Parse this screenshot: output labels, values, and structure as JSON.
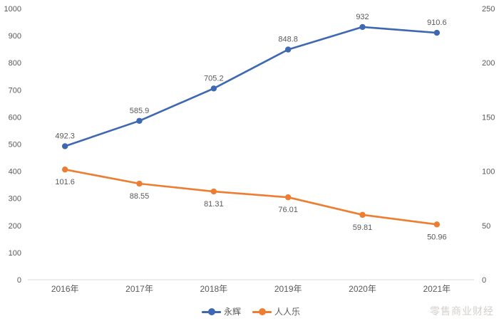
{
  "chart_data": {
    "type": "line",
    "title": "",
    "categories": [
      "2016年",
      "2017年",
      "2018年",
      "2019年",
      "2020年",
      "2021年"
    ],
    "series": [
      {
        "name": "永辉",
        "axis": "left",
        "color": "#3e68b1",
        "values": [
          492.3,
          585.9,
          705.2,
          848.8,
          932,
          910.6
        ],
        "labels": [
          "492.3",
          "585.9",
          "705.2",
          "848.8",
          "932",
          "910.6"
        ],
        "label_side": "above",
        "marker": "circle"
      },
      {
        "name": "人人乐",
        "axis": "right",
        "color": "#ed7d31",
        "values": [
          101.6,
          88.55,
          81.31,
          76.01,
          59.81,
          50.96
        ],
        "labels": [
          "101.6",
          "88.55",
          "81.31",
          "76.01",
          "59.81",
          "50.96"
        ],
        "label_side": "below",
        "marker": "circle"
      }
    ],
    "axes": {
      "left": {
        "min": 0,
        "max": 1000,
        "step": 100,
        "ticks": [
          "0",
          "100",
          "200",
          "300",
          "400",
          "500",
          "600",
          "700",
          "800",
          "900",
          "1000"
        ]
      },
      "right": {
        "min": 0,
        "max": 250,
        "step": 50,
        "ticks": [
          "0",
          "50",
          "100",
          "150",
          "200",
          "250"
        ]
      }
    },
    "grid": false,
    "legend_position": "bottom"
  },
  "watermark": {
    "text": "零售商业财经",
    "color": "#d3d0cc"
  },
  "style_colors": {
    "axis_line": "#d9d9d9",
    "tick_text": "#595959",
    "background": "#ffffff"
  }
}
